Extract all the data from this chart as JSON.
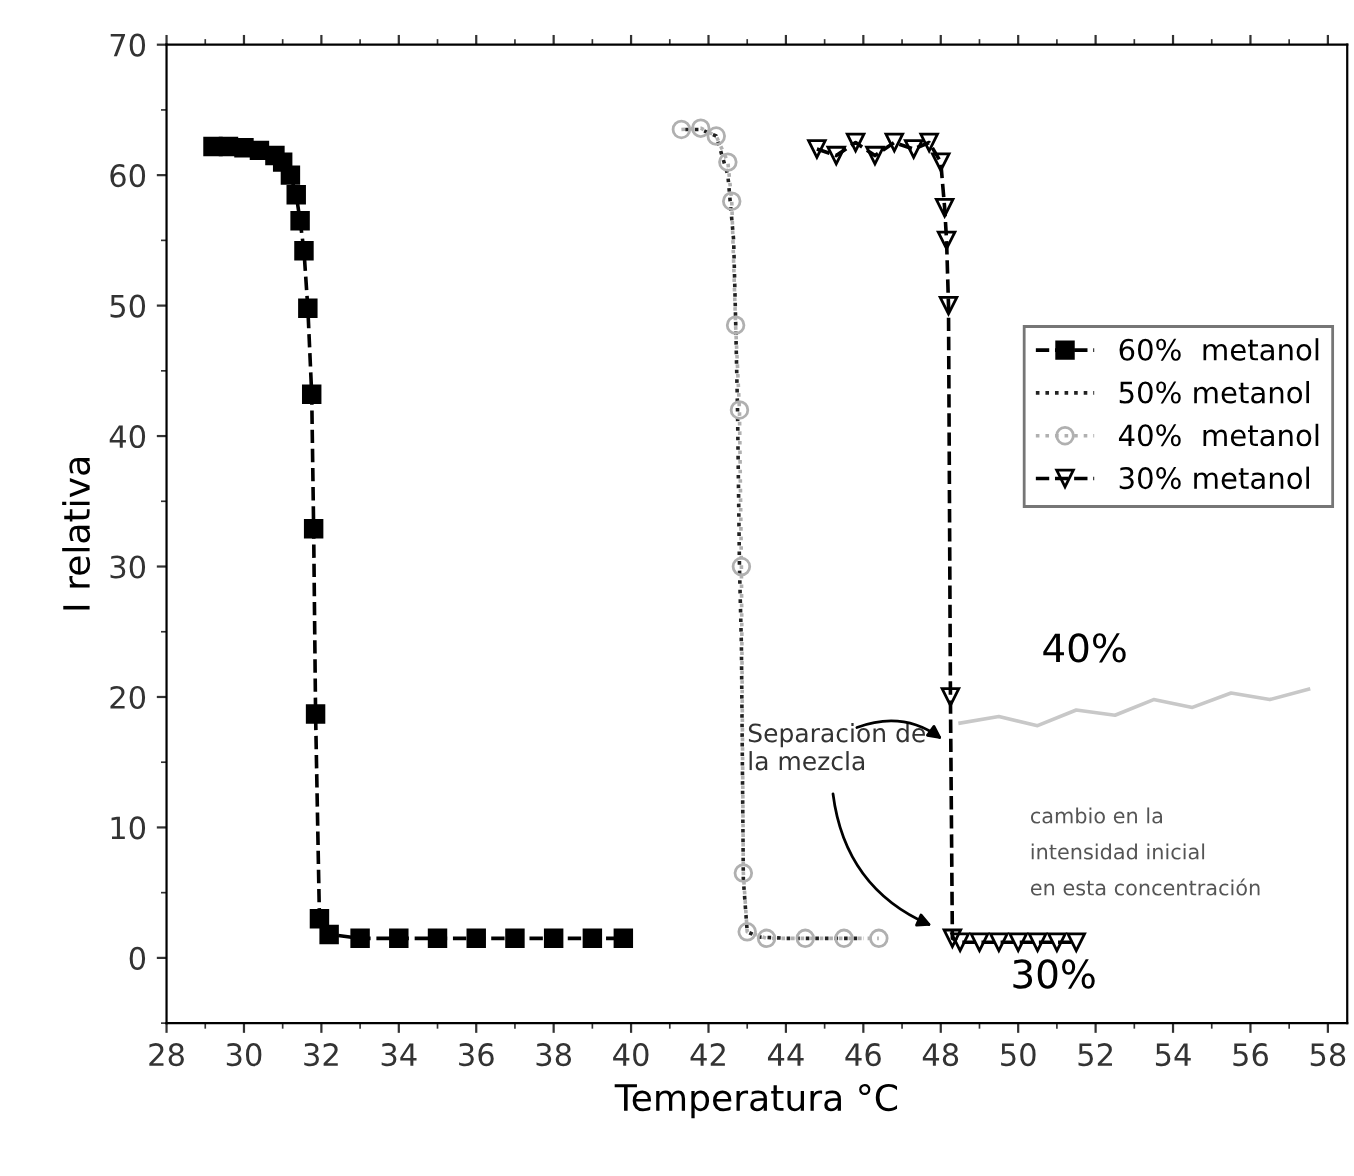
{
  "chart_data": {
    "type": "line",
    "xlabel": "Temperatura °C",
    "ylabel": "I relativa",
    "xlim": [
      28,
      58.5
    ],
    "xticks": [
      28,
      30,
      32,
      34,
      36,
      38,
      40,
      42,
      44,
      46,
      48,
      50,
      52,
      54,
      56,
      58
    ],
    "ylim": [
      -5,
      70
    ],
    "yticks": [
      0,
      10,
      20,
      30,
      40,
      50,
      60,
      70
    ],
    "grid": false,
    "legend": "right",
    "series": [
      {
        "name": "60%  metanol",
        "color": "#000000",
        "marker": "square",
        "line_style": "dashed",
        "x": [
          29.2,
          29.6,
          30.0,
          30.4,
          30.8,
          31.0,
          31.2,
          31.35,
          31.45,
          31.55,
          31.65,
          31.75,
          31.8,
          31.85,
          31.95,
          32.2,
          33,
          34,
          35,
          36,
          37,
          38,
          39,
          39.8
        ],
        "values": [
          62.2,
          62.2,
          62.1,
          61.9,
          61.5,
          61.0,
          60.0,
          58.5,
          56.5,
          54.2,
          49.8,
          43.2,
          32.9,
          18.7,
          3.0,
          1.8,
          1.5,
          1.5,
          1.5,
          1.5,
          1.5,
          1.5,
          1.5,
          1.5
        ]
      },
      {
        "name": "50% metanol",
        "color": "#222222",
        "marker": "none",
        "line_style": "dotted",
        "x": [
          41.4,
          41.8,
          42.2,
          42.5,
          42.65,
          42.7,
          42.75,
          42.8,
          42.85,
          42.9,
          43.0,
          43.3,
          44,
          45,
          46
        ],
        "values": [
          63.5,
          63.5,
          63.0,
          60.0,
          55.0,
          49.0,
          42.0,
          30.0,
          24.0,
          6.0,
          2.0,
          1.6,
          1.5,
          1.5,
          1.5
        ]
      },
      {
        "name": "40%  metanol",
        "color": "#b0b0b0",
        "marker": "circle",
        "line_style": "dotted",
        "x": [
          41.3,
          41.8,
          42.2,
          42.5,
          42.6,
          42.7,
          42.8,
          42.85,
          42.9,
          43.0,
          43.5,
          44.5,
          45.5,
          46.4
        ],
        "values": [
          63.5,
          63.6,
          63.0,
          61.0,
          58.0,
          48.5,
          42.0,
          30.0,
          6.5,
          2.0,
          1.5,
          1.5,
          1.5,
          1.5
        ]
      },
      {
        "name": "30% metanol",
        "color": "#000000",
        "marker": "triangle",
        "line_style": "dashed",
        "x": [
          44.8,
          45.3,
          45.8,
          46.3,
          46.8,
          47.3,
          47.7,
          48.0,
          48.1,
          48.15,
          48.2,
          48.25,
          48.3,
          48.5,
          49,
          49.5,
          50,
          50.5,
          51,
          51.5
        ],
        "values": [
          62.0,
          61.5,
          62.5,
          61.5,
          62.5,
          62.0,
          62.5,
          61.0,
          57.5,
          55.0,
          50.0,
          20.0,
          1.5,
          1.2,
          1.2,
          1.2,
          1.2,
          1.2,
          1.2,
          1.2
        ]
      },
      {
        "color": "#c8c8c8",
        "marker": "none",
        "line_style": "solid",
        "x": [
          48.5,
          49.5,
          50.5,
          51.5,
          52.5,
          53.5,
          54.5,
          55.5,
          56.5,
          57.5
        ],
        "values": [
          18.0,
          18.5,
          17.8,
          19.0,
          18.6,
          19.8,
          19.2,
          20.3,
          19.8,
          20.6
        ]
      }
    ],
    "annotations": [
      "40%",
      "30%",
      "Separacion de\nla mezcla",
      "cambio en la\nintensidad inicial\nen esta concentración"
    ]
  }
}
